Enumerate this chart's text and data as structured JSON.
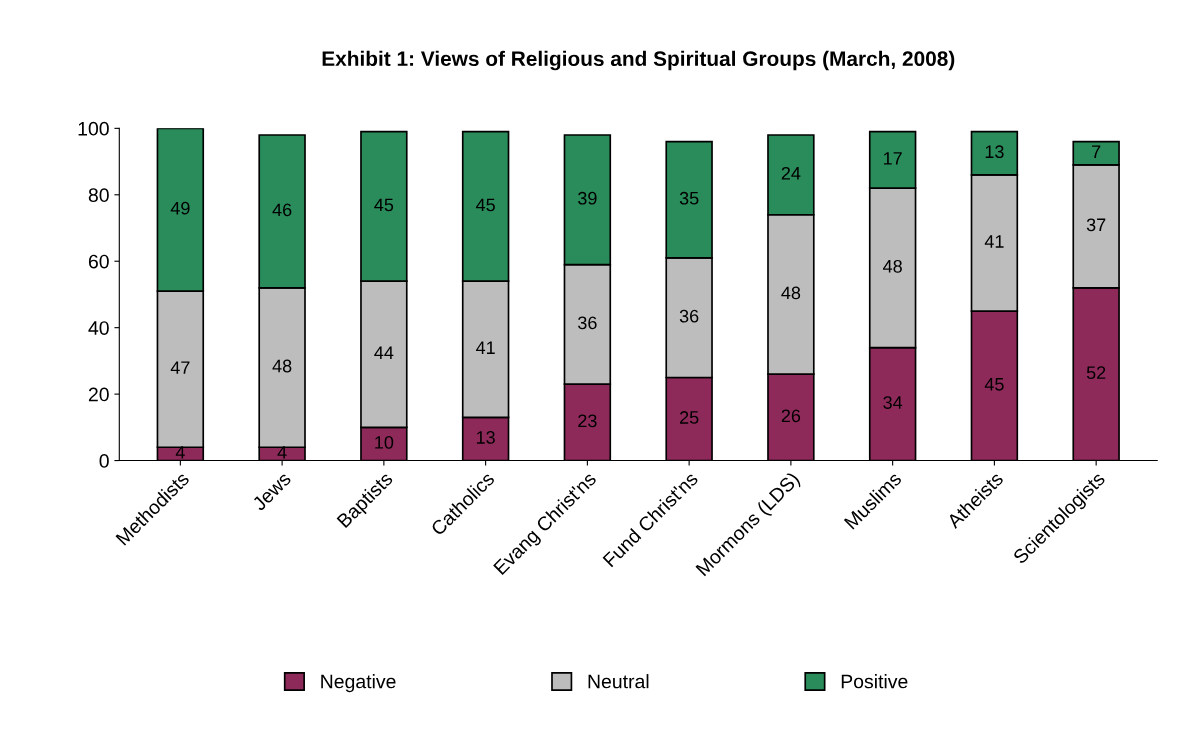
{
  "chart_data": {
    "type": "bar",
    "title": "Exhibit 1: Views of Religious and Spiritual Groups (March, 2008)",
    "categories": [
      "Methodists",
      "Jews",
      "Baptists",
      "Catholics",
      "Evang Christ'ns",
      "Fund Christ'ns",
      "Mormons (LDS)",
      "Muslims",
      "Atheists",
      "Scientologists"
    ],
    "series": [
      {
        "name": "Negative",
        "color": "#8e2a5a",
        "values": [
          4,
          4,
          10,
          13,
          23,
          25,
          26,
          34,
          45,
          52
        ]
      },
      {
        "name": "Neutral",
        "color": "#bdbdbd",
        "values": [
          47,
          48,
          44,
          41,
          36,
          36,
          48,
          48,
          41,
          37
        ]
      },
      {
        "name": "Positive",
        "color": "#2a8c5a",
        "values": [
          49,
          46,
          45,
          45,
          39,
          35,
          24,
          17,
          13,
          7
        ]
      }
    ],
    "stacked": true,
    "data_labels": true,
    "ylim": [
      0,
      100
    ],
    "yticks": [
      0,
      20,
      40,
      60,
      80,
      100
    ],
    "grid": false,
    "legend": "bottom"
  }
}
